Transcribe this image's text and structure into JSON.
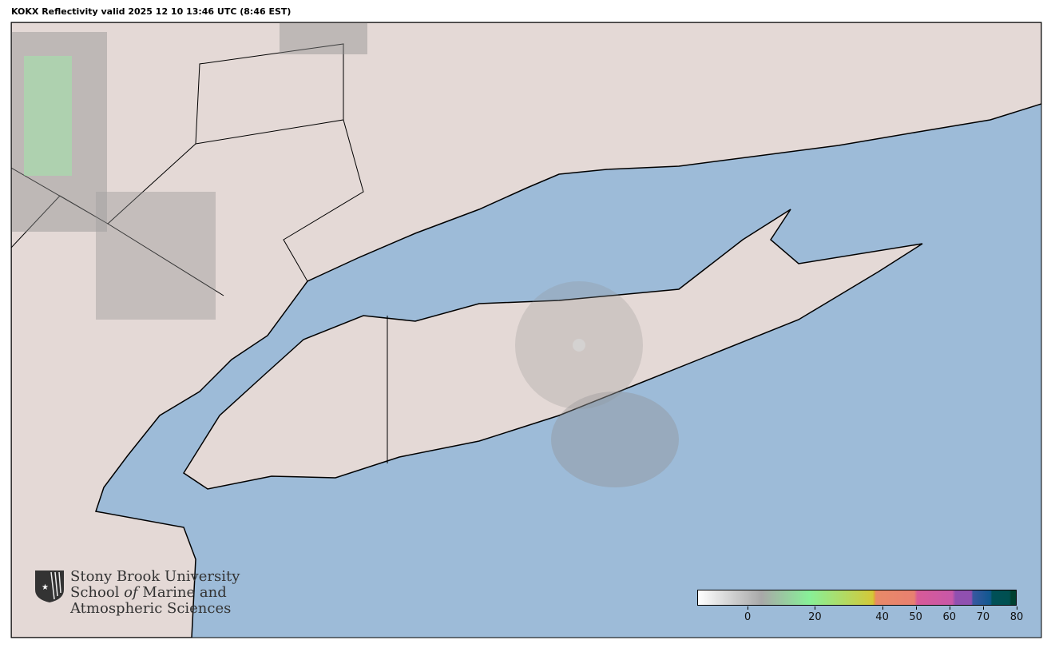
{
  "title": "KOKX Reflectivity valid 2025 12 10 13:46 UTC (8:46 EST)",
  "colors": {
    "ocean": "#9dbbd8",
    "land": "#e4d9d6",
    "border": "#000000",
    "precip_light": "#8f8f8f",
    "precip_green": "#88f098"
  },
  "logo": {
    "line1": "Stony Brook University",
    "line2a": "School ",
    "line2b": "of",
    "line2c": " Marine and",
    "line3": "Atmospheric Sciences",
    "icon": "star-shield-icon"
  },
  "colorbar": {
    "min": -15,
    "max": 80,
    "ticks": [
      {
        "value": 0,
        "label": "0"
      },
      {
        "value": 20,
        "label": "20"
      },
      {
        "value": 40,
        "label": "40"
      },
      {
        "value": 50,
        "label": "50"
      },
      {
        "value": 60,
        "label": "60"
      },
      {
        "value": 70,
        "label": "70"
      },
      {
        "value": 80,
        "label": "80"
      }
    ]
  }
}
